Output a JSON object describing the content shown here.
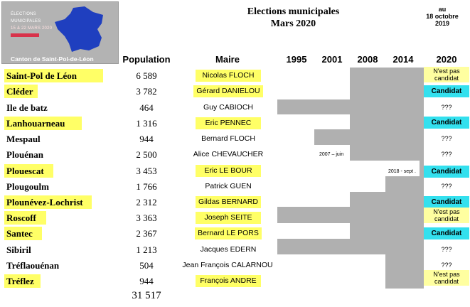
{
  "logo": {
    "line1": "ÉLECTIONS",
    "line2": "MUNICIPALES",
    "line3": "15 & 22 MARS 2020",
    "caption": "Canton de Saint-Pol-de-Léon"
  },
  "title": {
    "line1": "Elections municipales",
    "line2": "Mars 2020"
  },
  "as_of": {
    "line1": "au",
    "line2": "18 octobre",
    "line3": "2019"
  },
  "headers": {
    "population": "Population",
    "maire": "Maire",
    "y1995": "1995",
    "y2001": "2001",
    "y2008": "2008",
    "y2014": "2014",
    "y2020": "2020"
  },
  "rows": [
    {
      "commune": "Saint-Pol de Léon",
      "population": "6 589",
      "maire": "Nicolas FLOCH",
      "status": "N'est pas candidat"
    },
    {
      "commune": "Cléder",
      "population": "3 782",
      "maire": "Gérard DANIELOU",
      "status": "Candidat"
    },
    {
      "commune": "Ile de batz",
      "population": "464",
      "maire": "Guy CABIOCH",
      "status": "???"
    },
    {
      "commune": "Lanhouarneau",
      "population": "1 316",
      "maire": "Eric PENNEC",
      "status": "Candidat"
    },
    {
      "commune": "Mespaul",
      "population": "944",
      "maire": "Bernard FLOCH",
      "status": "???"
    },
    {
      "commune": "Plouénan",
      "population": "2 500",
      "maire": "Alice CHEVAUCHER",
      "status": "???"
    },
    {
      "commune": "Plouescat",
      "population": "3 453",
      "maire": "Eric LE BOUR",
      "status": "Candidat"
    },
    {
      "commune": "Plougoulm",
      "population": "1 766",
      "maire": "Patrick GUEN",
      "status": "???"
    },
    {
      "commune": "Plounévez-Lochrist",
      "population": "2 312",
      "maire": "Gildas BERNARD",
      "status": "Candidat"
    },
    {
      "commune": "Roscoff",
      "population": "3 363",
      "maire": "Joseph SEITE",
      "status": "N'est pas candidat"
    },
    {
      "commune": "Santec",
      "population": "2 367",
      "maire": "Bernard LE PORS",
      "status": "Candidat"
    },
    {
      "commune": "Sibiril",
      "population": "1 213",
      "maire": "Jacques EDERN",
      "status": "???"
    },
    {
      "commune": "Tréflaouénan",
      "population": "504",
      "maire": "Jean François CALARNOU",
      "status": "???"
    },
    {
      "commune": "Tréflez",
      "population": "944",
      "maire": "François ANDRE",
      "status": "N'est pas candidat"
    }
  ],
  "notes": {
    "plouenan": "2007 – juin",
    "plouescat": "2018 - sept ."
  },
  "total_population": "31 517",
  "colors": {
    "highlight": "#ffff66",
    "candidat": "#33e0ee",
    "tenure": "#b0b0b0"
  }
}
